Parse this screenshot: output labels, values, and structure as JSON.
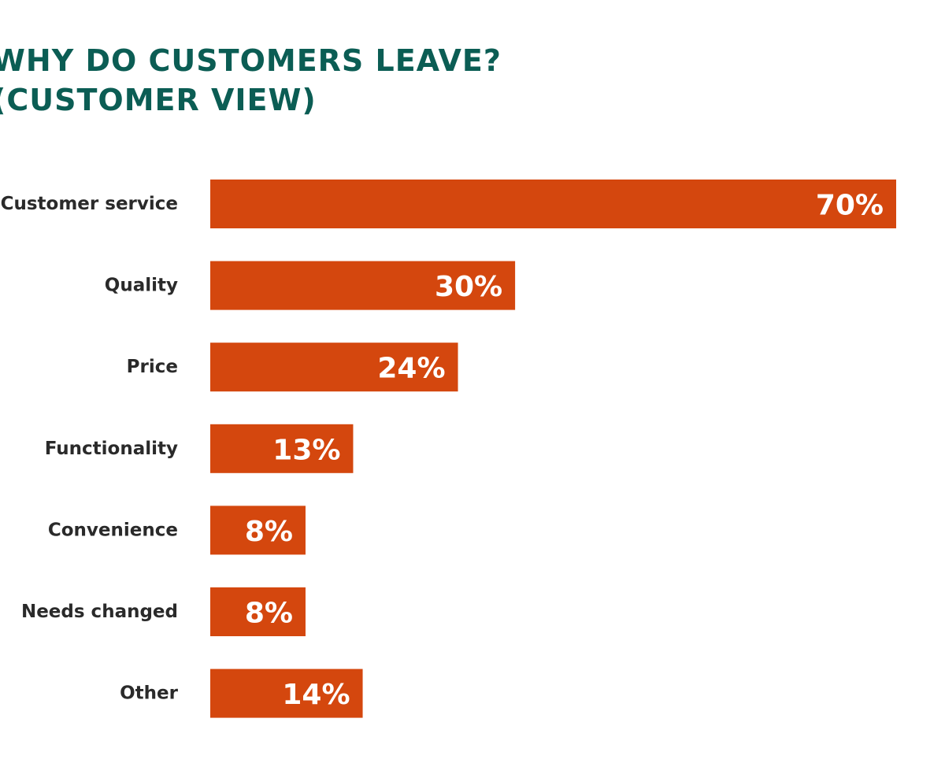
{
  "chart_data": {
    "type": "bar",
    "orientation": "horizontal",
    "title_lines": [
      "WHY DO CUSTOMERS LEAVE?",
      "(CUSTOMER VIEW)"
    ],
    "categories": [
      "Customer service",
      "Quality",
      "Price",
      "Functionality",
      "Convenience",
      "Needs changed",
      "Other"
    ],
    "values": [
      70,
      30,
      24,
      13,
      8,
      8,
      14
    ],
    "value_labels": [
      "70%",
      "30%",
      "24%",
      "13%",
      "8%",
      "8%",
      "14%"
    ],
    "unit": "%",
    "xlim": [
      -2,
      70
    ],
    "grid": false,
    "legend": "none",
    "colors": {
      "bar": "#d4470e",
      "title": "#0b5d54",
      "label": "#2a2a2a",
      "value_text": "#ffffff"
    }
  }
}
